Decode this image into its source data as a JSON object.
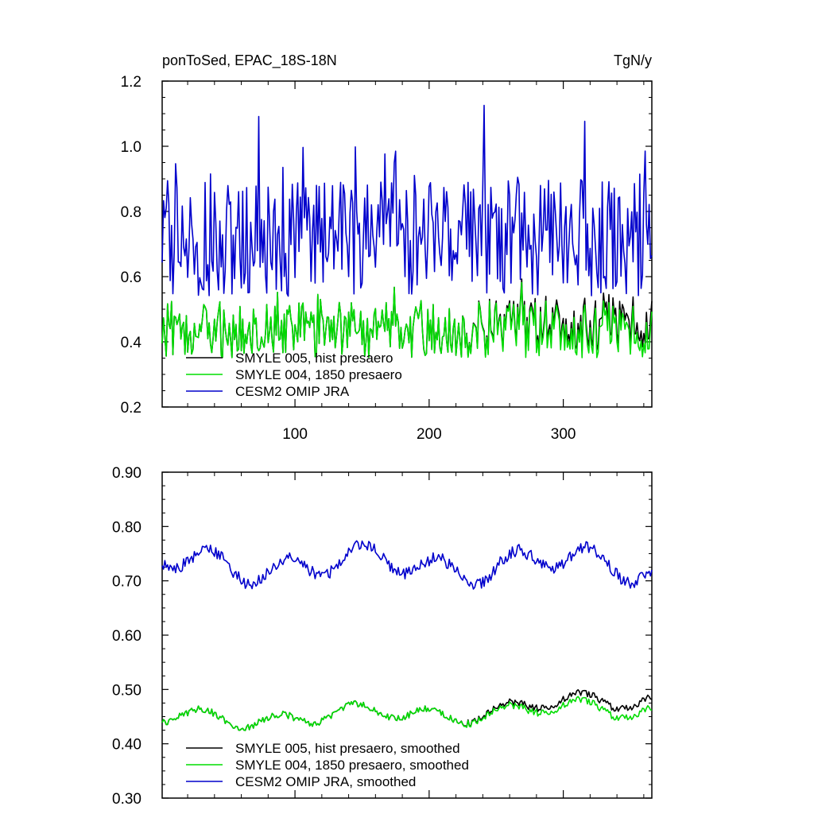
{
  "chart_data": [
    {
      "type": "line",
      "title_left": "ponToSed, EPAC_18S-18N",
      "title_right": "TgN/y",
      "xlim": [
        1,
        366
      ],
      "ylim": [
        0.2,
        1.2
      ],
      "xticks": [
        100,
        200,
        300
      ],
      "xtick_labels": [
        "100",
        "200",
        "300"
      ],
      "yticks": [
        0.2,
        0.4,
        0.6,
        0.8,
        1.0,
        1.2
      ],
      "ytick_labels": [
        "0.2",
        "0.4",
        "0.6",
        "0.8",
        "1.0",
        "1.2"
      ],
      "legend_position": "bottom-left",
      "series": [
        {
          "name": "SMYLE 005, hist presaero",
          "color": "#000000",
          "kind": "hist",
          "mean": 0.46,
          "amp": 0.09,
          "drift": 0.03
        },
        {
          "name": "SMYLE 004, 1850 presaero",
          "color": "#00dd00",
          "kind": "pre",
          "mean": 0.44,
          "amp": 0.09,
          "drift": 0.0
        },
        {
          "name": "CESM2 OMIP JRA",
          "color": "#0000cc",
          "kind": "omip",
          "mean": 0.72,
          "amp": 0.18,
          "drift": 0.0
        }
      ]
    },
    {
      "type": "line",
      "xlim": [
        1,
        366
      ],
      "ylim": [
        0.3,
        0.9
      ],
      "xticks": [
        100,
        200,
        300
      ],
      "yticks": [
        0.3,
        0.4,
        0.5,
        0.6,
        0.7,
        0.8,
        0.9
      ],
      "ytick_labels": [
        "0.30",
        "0.40",
        "0.50",
        "0.60",
        "0.70",
        "0.80",
        "0.90"
      ],
      "legend_position": "bottom-left",
      "series": [
        {
          "name": "SMYLE 005, hist presaero, smoothed",
          "color": "#000000",
          "kind": "hist",
          "mean": 0.455,
          "amp": 0.025,
          "drift": 0.04
        },
        {
          "name": "SMYLE 004, 1850 presaero, smoothed",
          "color": "#00dd00",
          "kind": "pre",
          "mean": 0.445,
          "amp": 0.025,
          "drift": 0.02
        },
        {
          "name": "CESM2 OMIP JRA, smoothed",
          "color": "#0000cc",
          "kind": "omip",
          "mean": 0.73,
          "amp": 0.045,
          "drift": 0.0
        }
      ]
    }
  ]
}
